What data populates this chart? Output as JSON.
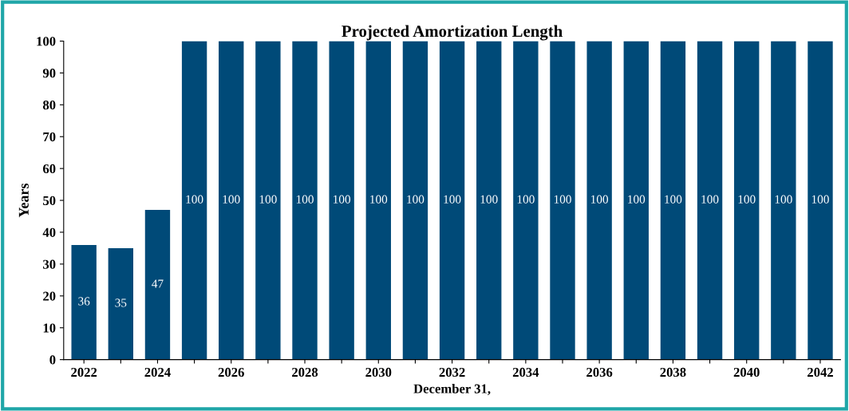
{
  "chart_data": {
    "type": "bar",
    "title": "Projected Amortization Length",
    "xlabel": "December 31,",
    "ylabel": "Years",
    "categories": [
      "2022",
      null,
      "2024",
      null,
      "2026",
      null,
      "2028",
      null,
      "2030",
      null,
      "2032",
      null,
      "2034",
      null,
      "2036",
      null,
      "2038",
      null,
      "2040",
      null,
      "2042"
    ],
    "values": [
      36,
      35,
      47,
      100,
      100,
      100,
      100,
      100,
      100,
      100,
      100,
      100,
      100,
      100,
      100,
      100,
      100,
      100,
      100,
      100,
      100
    ],
    "color": "#004a78",
    "ylim": [
      0,
      100
    ],
    "yticks": [
      0,
      10,
      20,
      30,
      40,
      50,
      60,
      70,
      80,
      90,
      100
    ],
    "data_labels": true,
    "grid": false,
    "legend": false
  }
}
